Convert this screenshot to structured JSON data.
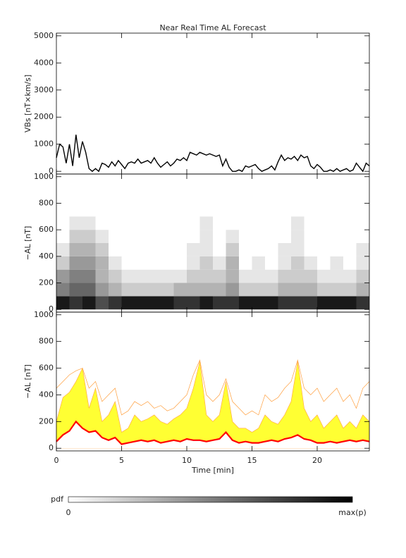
{
  "chart_data": [
    {
      "type": "line",
      "title": "Near Real Time AL Forecast",
      "ylabel": "VBs [nT×km/s]",
      "color": "#000000",
      "x": [
        0,
        0.25,
        0.5,
        0.75,
        1,
        1.25,
        1.5,
        1.75,
        2,
        2.25,
        2.5,
        2.75,
        3,
        3.25,
        3.5,
        3.75,
        4,
        4.25,
        4.5,
        4.75,
        5,
        5.25,
        5.5,
        5.75,
        6,
        6.25,
        6.5,
        6.75,
        7,
        7.25,
        7.5,
        7.75,
        8,
        8.25,
        8.5,
        8.75,
        9,
        9.25,
        9.5,
        9.75,
        10,
        10.25,
        10.5,
        10.75,
        11,
        11.25,
        11.5,
        11.75,
        12,
        12.25,
        12.5,
        12.75,
        13,
        13.25,
        13.5,
        13.75,
        14,
        14.25,
        14.5,
        14.75,
        15,
        15.25,
        15.5,
        15.75,
        16,
        16.25,
        16.5,
        16.75,
        17,
        17.25,
        17.5,
        17.75,
        18,
        18.25,
        18.5,
        18.75,
        19,
        19.25,
        19.5,
        19.75,
        20,
        20.25,
        20.5,
        20.75,
        21,
        21.25,
        21.5,
        21.75,
        22,
        22.25,
        22.5,
        22.75,
        23,
        23.25,
        23.5,
        23.75,
        24
      ],
      "values": [
        500,
        1000,
        900,
        300,
        1000,
        200,
        1350,
        500,
        1100,
        700,
        100,
        0,
        100,
        0,
        300,
        250,
        150,
        350,
        200,
        400,
        250,
        100,
        300,
        350,
        300,
        450,
        300,
        350,
        400,
        300,
        500,
        300,
        150,
        250,
        350,
        200,
        300,
        450,
        400,
        500,
        400,
        700,
        650,
        600,
        700,
        650,
        600,
        650,
        600,
        550,
        600,
        200,
        450,
        150,
        0,
        0,
        50,
        0,
        200,
        150,
        200,
        250,
        100,
        0,
        50,
        100,
        200,
        50,
        350,
        600,
        400,
        500,
        450,
        550,
        400,
        600,
        500,
        550,
        200,
        100,
        250,
        150,
        0,
        0,
        50,
        0,
        100,
        0,
        50,
        100,
        0,
        50,
        300,
        150,
        0,
        300,
        200
      ],
      "xlim": [
        0,
        24
      ],
      "xticks": [
        0,
        5,
        10,
        15,
        20
      ],
      "ylim": [
        -100,
        5100
      ],
      "yticks": [
        0,
        1000,
        2000,
        3000,
        4000,
        5000
      ]
    },
    {
      "type": "heatmap",
      "ylabel": "−AL [nT]",
      "x_bins": [
        0,
        1,
        2,
        3,
        4,
        5,
        6,
        7,
        8,
        9,
        10,
        11,
        12,
        13,
        14,
        15,
        16,
        17,
        18,
        19,
        20,
        21,
        22,
        23,
        24
      ],
      "y_bins": [
        0,
        100,
        200,
        300,
        400,
        500,
        600,
        700
      ],
      "z": [
        [
          0.9,
          0.8,
          0.9,
          0.7,
          0.8,
          0.9,
          0.9,
          0.9,
          0.9,
          0.8,
          0.8,
          0.9,
          0.8,
          0.8,
          0.9,
          0.9,
          0.9,
          0.8,
          0.8,
          0.8,
          0.9,
          0.9,
          0.9,
          0.8
        ],
        [
          0.5,
          0.6,
          0.6,
          0.4,
          0.3,
          0.2,
          0.2,
          0.2,
          0.2,
          0.3,
          0.3,
          0.3,
          0.3,
          0.4,
          0.2,
          0.2,
          0.2,
          0.3,
          0.3,
          0.3,
          0.2,
          0.2,
          0.2,
          0.3
        ],
        [
          0.4,
          0.5,
          0.5,
          0.3,
          0.2,
          0.1,
          0.1,
          0.1,
          0.1,
          0.1,
          0.2,
          0.2,
          0.2,
          0.3,
          0.1,
          0.1,
          0.1,
          0.2,
          0.2,
          0.2,
          0.1,
          0.1,
          0.1,
          0.2
        ],
        [
          0.2,
          0.4,
          0.4,
          0.3,
          0.1,
          0,
          0,
          0,
          0,
          0,
          0.1,
          0.2,
          0.1,
          0.3,
          0,
          0.1,
          0,
          0.1,
          0.2,
          0.1,
          0,
          0.1,
          0,
          0.1
        ],
        [
          0.1,
          0.3,
          0.3,
          0.2,
          0,
          0,
          0,
          0,
          0,
          0,
          0.1,
          0.1,
          0,
          0.2,
          0,
          0,
          0,
          0.1,
          0.1,
          0,
          0,
          0,
          0,
          0.1
        ],
        [
          0,
          0.2,
          0.2,
          0.1,
          0,
          0,
          0,
          0,
          0,
          0,
          0,
          0.1,
          0,
          0.1,
          0,
          0,
          0,
          0,
          0.1,
          0,
          0,
          0,
          0,
          0
        ],
        [
          0,
          0.1,
          0.1,
          0,
          0,
          0,
          0,
          0,
          0,
          0,
          0,
          0.1,
          0,
          0,
          0,
          0,
          0,
          0,
          0.1,
          0,
          0,
          0,
          0,
          0
        ]
      ],
      "xlim": [
        0,
        24
      ],
      "xticks": [
        0,
        5,
        10,
        15,
        20
      ],
      "ylim": [
        -20,
        1020
      ],
      "yticks": [
        0,
        200,
        400,
        600,
        800,
        1000
      ]
    },
    {
      "type": "band",
      "ylabel": "−AL [nT]",
      "xlabel": "Time [min]",
      "x": [
        0,
        0.5,
        1,
        1.5,
        2,
        2.5,
        3,
        3.5,
        4,
        4.5,
        5,
        5.5,
        6,
        6.5,
        7,
        7.5,
        8,
        8.5,
        9,
        9.5,
        10,
        10.5,
        11,
        11.5,
        12,
        12.5,
        13,
        13.5,
        14,
        14.5,
        15,
        15.5,
        16,
        16.5,
        17,
        17.5,
        18,
        18.5,
        19,
        19.5,
        20,
        20.5,
        21,
        21.5,
        22,
        22.5,
        23,
        23.5,
        24
      ],
      "series": [
        {
          "color": "#ffa040",
          "style": "line",
          "values": [
            450,
            500,
            550,
            580,
            600,
            450,
            500,
            350,
            400,
            450,
            250,
            280,
            350,
            320,
            350,
            300,
            320,
            280,
            300,
            350,
            400,
            550,
            660,
            400,
            350,
            400,
            520,
            350,
            300,
            250,
            280,
            250,
            400,
            350,
            380,
            450,
            500,
            660,
            450,
            400,
            450,
            350,
            400,
            450,
            350,
            400,
            300,
            450,
            500
          ]
        },
        {
          "color": "#ffff33",
          "style": "area",
          "values": [
            200,
            380,
            420,
            500,
            600,
            300,
            450,
            200,
            250,
            350,
            120,
            150,
            250,
            200,
            220,
            250,
            200,
            180,
            220,
            250,
            300,
            450,
            650,
            250,
            200,
            250,
            500,
            200,
            150,
            150,
            120,
            150,
            250,
            200,
            180,
            250,
            350,
            650,
            300,
            200,
            250,
            150,
            200,
            250,
            150,
            200,
            150,
            250,
            200
          ]
        },
        {
          "color": "#ff0000",
          "style": "median",
          "values": [
            50,
            100,
            130,
            200,
            150,
            120,
            130,
            80,
            60,
            80,
            30,
            40,
            50,
            60,
            50,
            60,
            40,
            50,
            60,
            50,
            70,
            60,
            60,
            50,
            60,
            70,
            120,
            60,
            40,
            50,
            40,
            40,
            50,
            60,
            50,
            70,
            80,
            100,
            70,
            60,
            40,
            40,
            50,
            40,
            50,
            60,
            50,
            60,
            50
          ]
        }
      ],
      "xlim": [
        0,
        24
      ],
      "xticks": [
        0,
        5,
        10,
        15,
        20
      ],
      "ylim": [
        -20,
        1020
      ],
      "yticks": [
        0,
        200,
        400,
        600,
        800,
        1000
      ]
    }
  ],
  "colorbar": {
    "label": "pdf",
    "min_label": "0",
    "max_label": "max(p)"
  }
}
